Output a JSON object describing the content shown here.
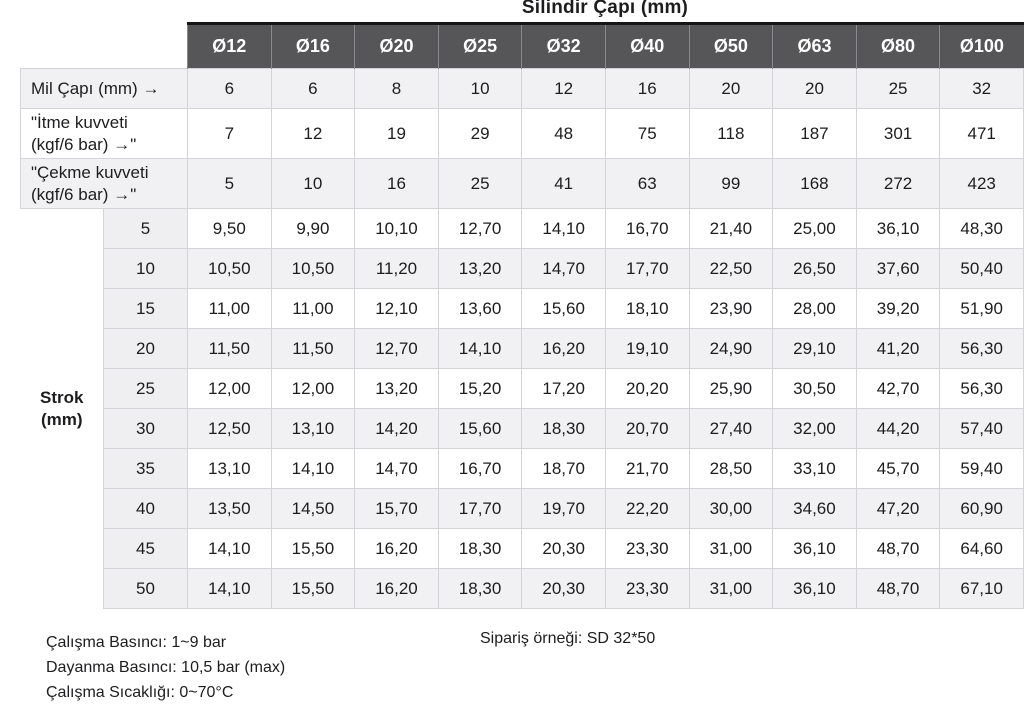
{
  "title": "Silindir Çapı (mm)",
  "table": {
    "columns": [
      "Ø12",
      "Ø16",
      "Ø20",
      "Ø25",
      "Ø32",
      "Ø40",
      "Ø50",
      "Ø63",
      "Ø80",
      "Ø100"
    ],
    "spec_rows": [
      {
        "label": "Mil Çapı (mm) →",
        "values": [
          "6",
          "6",
          "8",
          "10",
          "12",
          "16",
          "20",
          "20",
          "25",
          "32"
        ]
      },
      {
        "label": "\"İtme kuvveti\n(kgf/6 bar) →\"",
        "values": [
          "7",
          "12",
          "19",
          "29",
          "48",
          "75",
          "118",
          "187",
          "301",
          "471"
        ]
      },
      {
        "label": "\"Çekme kuvveti\n(kgf/6 bar) →\"",
        "values": [
          "5",
          "10",
          "16",
          "25",
          "41",
          "63",
          "99",
          "168",
          "272",
          "423"
        ]
      }
    ],
    "strok_caption": "Strok\n(mm)",
    "strok_rows": [
      {
        "stroke": "5",
        "values": [
          "9,50",
          "9,90",
          "10,10",
          "12,70",
          "14,10",
          "16,70",
          "21,40",
          "25,00",
          "36,10",
          "48,30"
        ]
      },
      {
        "stroke": "10",
        "values": [
          "10,50",
          "10,50",
          "11,20",
          "13,20",
          "14,70",
          "17,70",
          "22,50",
          "26,50",
          "37,60",
          "50,40"
        ]
      },
      {
        "stroke": "15",
        "values": [
          "11,00",
          "11,00",
          "12,10",
          "13,60",
          "15,60",
          "18,10",
          "23,90",
          "28,00",
          "39,20",
          "51,90"
        ]
      },
      {
        "stroke": "20",
        "values": [
          "11,50",
          "11,50",
          "12,70",
          "14,10",
          "16,20",
          "19,10",
          "24,90",
          "29,10",
          "41,20",
          "56,30"
        ]
      },
      {
        "stroke": "25",
        "values": [
          "12,00",
          "12,00",
          "13,20",
          "15,20",
          "17,20",
          "20,20",
          "25,90",
          "30,50",
          "42,70",
          "56,30"
        ]
      },
      {
        "stroke": "30",
        "values": [
          "12,50",
          "13,10",
          "14,20",
          "15,60",
          "18,30",
          "20,70",
          "27,40",
          "32,00",
          "44,20",
          "57,40"
        ]
      },
      {
        "stroke": "35",
        "values": [
          "13,10",
          "14,10",
          "14,70",
          "16,70",
          "18,70",
          "21,70",
          "28,50",
          "33,10",
          "45,70",
          "59,40"
        ]
      },
      {
        "stroke": "40",
        "values": [
          "13,50",
          "14,50",
          "15,70",
          "17,70",
          "19,70",
          "22,20",
          "30,00",
          "34,60",
          "47,20",
          "60,90"
        ]
      },
      {
        "stroke": "45",
        "values": [
          "14,10",
          "15,50",
          "16,20",
          "18,30",
          "20,30",
          "23,30",
          "31,00",
          "36,10",
          "48,70",
          "64,60"
        ]
      },
      {
        "stroke": "50",
        "values": [
          "14,10",
          "15,50",
          "16,20",
          "18,30",
          "20,30",
          "23,30",
          "31,00",
          "36,10",
          "48,70",
          "67,10"
        ]
      }
    ]
  },
  "notes": {
    "left": [
      "Çalışma Basıncı: 1~9 bar",
      "Dayanma Basıncı: 10,5 bar (max)",
      "Çalışma Sıcaklığı: 0~70°C"
    ],
    "right": "Sipariş örneği: SD 32*50"
  },
  "colors": {
    "header_bg": "#565659",
    "header_text": "#ffffff",
    "header_top_rule": "#161616",
    "shaded_row": "#f1f1f3",
    "strok_column": "#efeff1",
    "border": "#d4d4d8",
    "text": "#1d1d1f"
  }
}
